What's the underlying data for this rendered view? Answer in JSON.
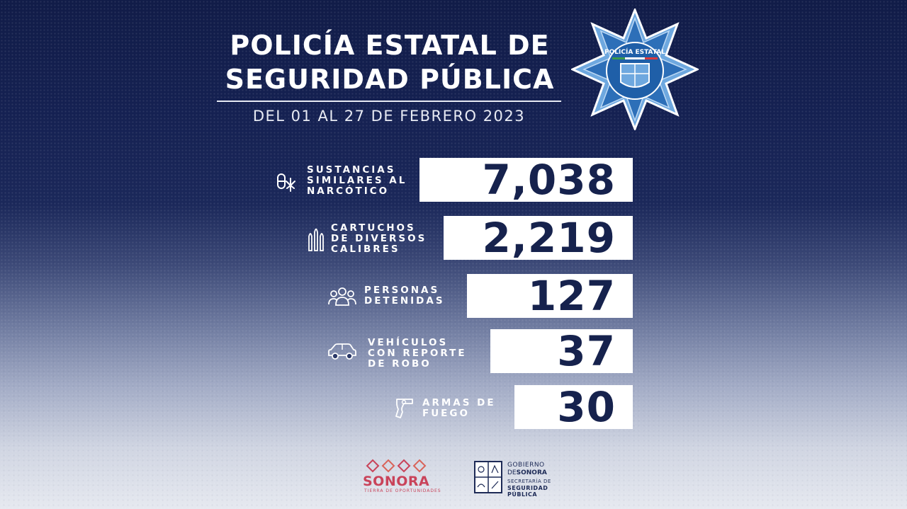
{
  "header": {
    "title_line1": "POLICÍA ESTATAL DE",
    "title_line2": "SEGURIDAD PÚBLICA",
    "date_range": "DEL 01 AL 27 DE FEBRERO 2023",
    "badge_text": "POLICÍA ESTATAL"
  },
  "stats": [
    {
      "label_lines": [
        "SUSTANCIAS",
        "SIMILARES AL",
        "NARCÓTICO"
      ],
      "value": "7,038",
      "icon": "substances-icon"
    },
    {
      "label_lines": [
        "CARTUCHOS",
        "DE DIVERSOS",
        "CALIBRES"
      ],
      "value": "2,219",
      "icon": "ammunition-icon"
    },
    {
      "label_lines": [
        "PERSONAS",
        "DETENIDAS"
      ],
      "value": "127",
      "icon": "people-icon"
    },
    {
      "label_lines": [
        "VEHÍCULOS",
        "CON REPORTE",
        "DE ROBO"
      ],
      "value": "37",
      "icon": "car-icon"
    },
    {
      "label_lines": [
        "ARMAS DE",
        "FUEGO"
      ],
      "value": "30",
      "icon": "revolver-icon"
    }
  ],
  "footer": {
    "sonora_word": "SONORA",
    "sonora_tagline": "TIERRA DE OPORTUNIDADES",
    "gov_line1": "GOBIERNO",
    "gov_line2_prefix": "DE",
    "gov_line2_name": "SONORA",
    "gov_line3": "SECRETARÍA DE",
    "gov_line4": "SEGURIDAD",
    "gov_line5": "PÚBLICA"
  },
  "colors": {
    "navy": "#16224d",
    "white": "#ffffff",
    "badge_blue": "#2d6fb8",
    "sonora_red": "#c9435a"
  }
}
